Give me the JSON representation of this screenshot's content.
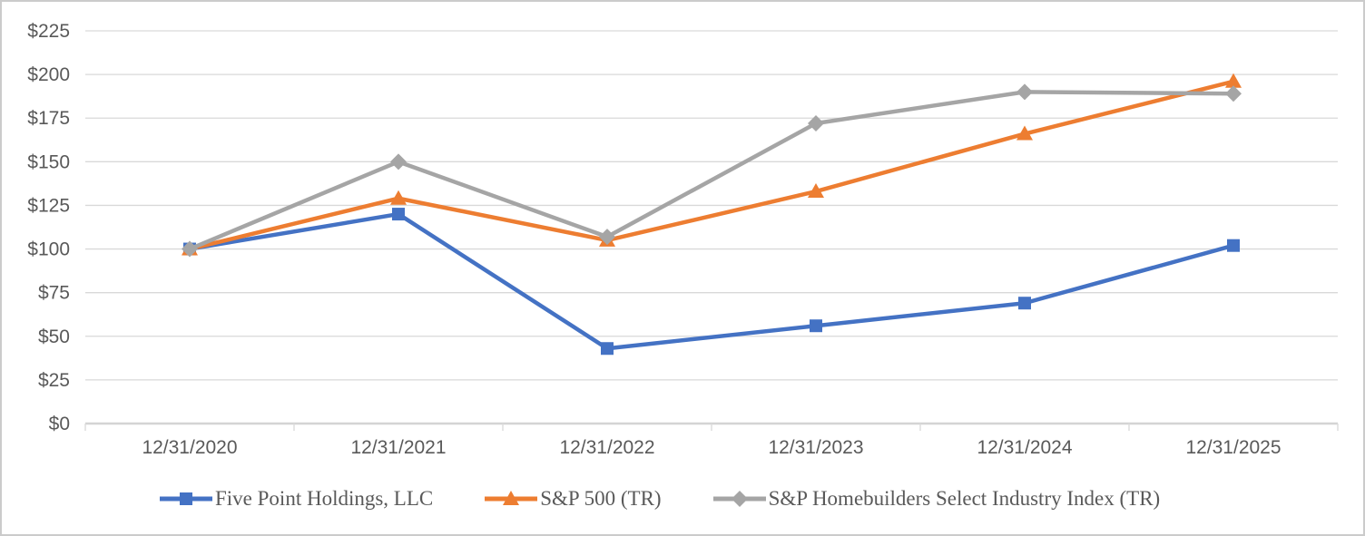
{
  "chart_data": {
    "type": "line",
    "title": "",
    "xlabel": "",
    "ylabel": "",
    "categories": [
      "12/31/2020",
      "12/31/2021",
      "12/31/2022",
      "12/31/2023",
      "12/31/2024",
      "12/31/2025"
    ],
    "series": [
      {
        "name": "Five Point Holdings, LLC",
        "color": "#4472C4",
        "marker": "square",
        "values": [
          100,
          120,
          43,
          56,
          69,
          102
        ]
      },
      {
        "name": "S&P 500 (TR)",
        "color": "#ED7D31",
        "marker": "triangle",
        "values": [
          100,
          129,
          105,
          133,
          166,
          196
        ]
      },
      {
        "name": "S&P Homebuilders Select Industry Index (TR)",
        "color": "#A5A5A5",
        "marker": "diamond",
        "values": [
          100,
          150,
          107,
          172,
          190,
          189
        ]
      }
    ],
    "ylim": [
      0,
      225
    ],
    "y_step": 25,
    "y_tick_labels": [
      "$0",
      "$25",
      "$50",
      "$75",
      "$100",
      "$125",
      "$150",
      "$175",
      "$200",
      "$225"
    ],
    "grid": true,
    "legend_position": "bottom",
    "colors": {
      "grid": "#D9D9D9",
      "axis": "#D4D4D4",
      "text": "#595959",
      "border": "#CBCBCB",
      "background": "#FFFFFF"
    }
  }
}
